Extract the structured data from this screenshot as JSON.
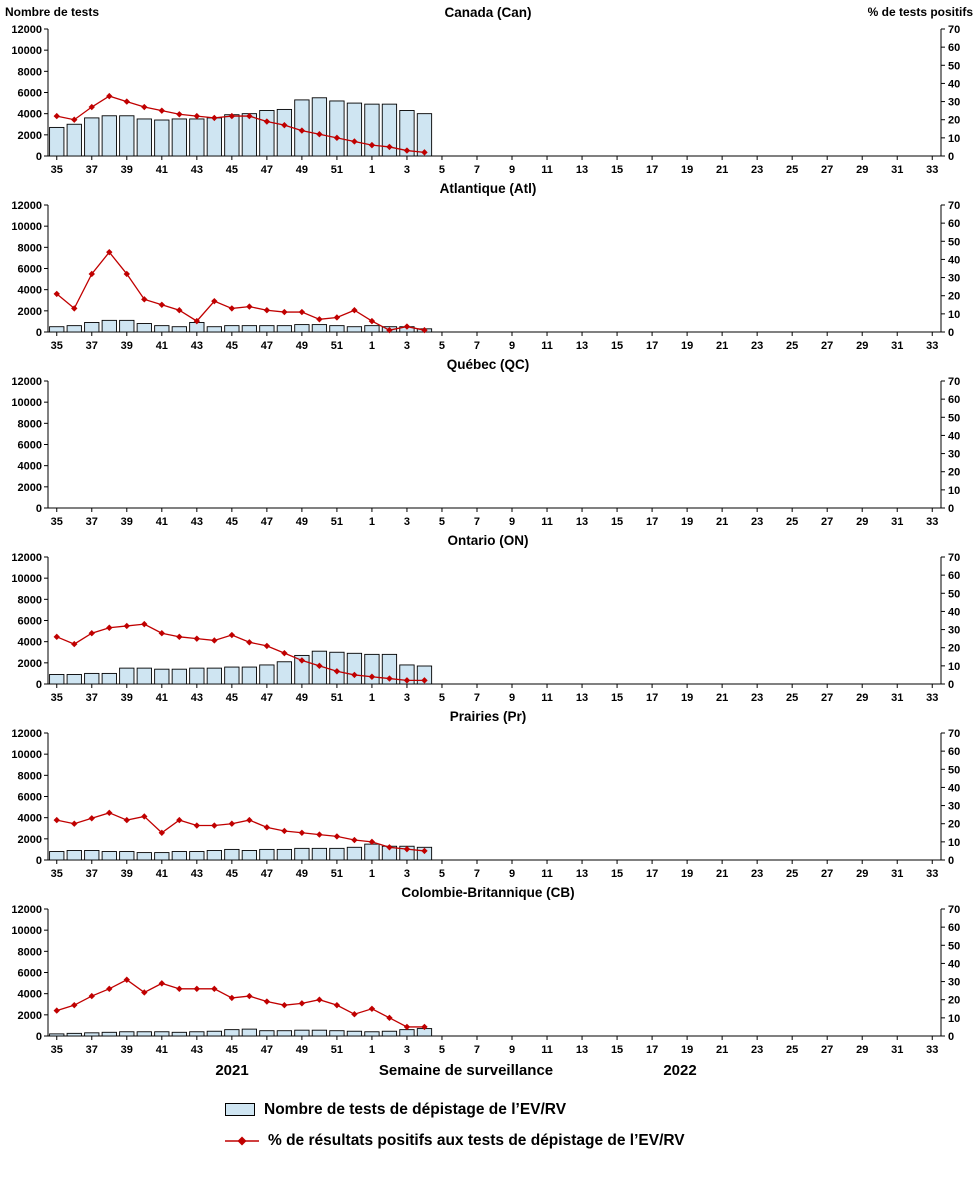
{
  "labels": {
    "left_axis": "Nombre de tests",
    "right_axis": "% de tests positifs"
  },
  "footer": {
    "year_left": "2021",
    "x_label": "Semaine de surveillance",
    "year_right": "2022"
  },
  "legend": [
    {
      "series": "tests",
      "label": "Nombre de tests de dépistage de l’EV/RV"
    },
    {
      "series": "pct_positive",
      "label": "% de résultats positifs aux tests de dépistage de l’EV/RV"
    }
  ],
  "colors": {
    "bar_fill": "#cfe5f2",
    "bar_stroke": "#000000",
    "line": "#c00000"
  },
  "axes": {
    "yticks_left": [
      0,
      2000,
      4000,
      6000,
      8000,
      10000,
      12000
    ],
    "yticks_right": [
      0,
      10,
      20,
      30,
      40,
      50,
      60,
      70
    ],
    "x_weeks_2021": [
      35,
      36,
      37,
      38,
      39,
      40,
      41,
      42,
      43,
      44,
      45,
      46,
      47,
      48,
      49,
      50,
      51,
      52
    ],
    "x_weeks_2022": [
      1,
      2,
      3,
      4,
      5,
      6,
      7,
      8,
      9,
      10,
      11,
      12,
      13,
      14,
      15,
      16,
      17,
      18,
      19,
      20,
      21,
      22,
      23,
      24,
      25,
      26,
      27,
      28,
      29,
      30,
      31,
      32,
      33
    ],
    "x_tick_labels": [
      "35",
      "37",
      "39",
      "41",
      "43",
      "45",
      "47",
      "49",
      "51",
      "1",
      "3",
      "5",
      "7",
      "9",
      "11",
      "13",
      "15",
      "17",
      "19",
      "21",
      "23",
      "25",
      "27",
      "29",
      "31",
      "33"
    ]
  },
  "chart_data": [
    {
      "type": "bar+line",
      "title": "Canada (Can)",
      "ylim_left": [
        0,
        12000
      ],
      "ylim_right": [
        0,
        70
      ],
      "weeks": [
        35,
        36,
        37,
        38,
        39,
        40,
        41,
        42,
        43,
        44,
        45,
        46,
        47,
        48,
        49,
        50,
        51,
        52,
        1,
        2,
        3,
        4
      ],
      "tests": [
        2700,
        3000,
        3600,
        3800,
        3800,
        3500,
        3400,
        3500,
        3500,
        3600,
        3900,
        4000,
        4300,
        4400,
        5300,
        5500,
        5200,
        5000,
        4900,
        4900,
        4300,
        4000
      ],
      "pct_positive": [
        22,
        20,
        27,
        33,
        30,
        27,
        25,
        23,
        22,
        21,
        22,
        22,
        19,
        17,
        14,
        12,
        10,
        8,
        6,
        5,
        3,
        2
      ]
    },
    {
      "type": "bar+line",
      "title": "Atlantique (Atl)",
      "ylim_left": [
        0,
        12000
      ],
      "ylim_right": [
        0,
        70
      ],
      "weeks": [
        35,
        36,
        37,
        38,
        39,
        40,
        41,
        42,
        43,
        44,
        45,
        46,
        47,
        48,
        49,
        50,
        51,
        52,
        1,
        2,
        3,
        4
      ],
      "tests": [
        500,
        600,
        900,
        1100,
        1100,
        800,
        600,
        500,
        900,
        500,
        600,
        600,
        600,
        600,
        700,
        700,
        600,
        500,
        600,
        500,
        500,
        300
      ],
      "pct_positive": [
        21,
        13,
        32,
        44,
        32,
        18,
        15,
        12,
        6,
        17,
        13,
        14,
        12,
        11,
        11,
        7,
        8,
        12,
        6,
        1,
        3,
        1
      ]
    },
    {
      "type": "bar+line",
      "title": "Québec (QC)",
      "ylim_left": [
        0,
        12000
      ],
      "ylim_right": [
        0,
        70
      ],
      "weeks": [],
      "tests": [],
      "pct_positive": []
    },
    {
      "type": "bar+line",
      "title": "Ontario (ON)",
      "ylim_left": [
        0,
        12000
      ],
      "ylim_right": [
        0,
        70
      ],
      "weeks": [
        35,
        36,
        37,
        38,
        39,
        40,
        41,
        42,
        43,
        44,
        45,
        46,
        47,
        48,
        49,
        50,
        51,
        52,
        1,
        2,
        3,
        4
      ],
      "tests": [
        900,
        900,
        1000,
        1000,
        1500,
        1500,
        1400,
        1400,
        1500,
        1500,
        1600,
        1600,
        1800,
        2100,
        2700,
        3100,
        3000,
        2900,
        2800,
        2800,
        1800,
        1700
      ],
      "pct_positive": [
        26,
        22,
        28,
        31,
        32,
        33,
        28,
        26,
        25,
        24,
        27,
        23,
        21,
        17,
        13,
        10,
        7,
        5,
        4,
        3,
        2,
        2
      ]
    },
    {
      "type": "bar+line",
      "title": "Prairies (Pr)",
      "ylim_left": [
        0,
        12000
      ],
      "ylim_right": [
        0,
        70
      ],
      "weeks": [
        35,
        36,
        37,
        38,
        39,
        40,
        41,
        42,
        43,
        44,
        45,
        46,
        47,
        48,
        49,
        50,
        51,
        52,
        1,
        2,
        3,
        4
      ],
      "tests": [
        800,
        900,
        900,
        800,
        800,
        700,
        700,
        800,
        800,
        900,
        1000,
        900,
        1000,
        1000,
        1100,
        1100,
        1100,
        1200,
        1500,
        1300,
        1300,
        1200
      ],
      "pct_positive": [
        22,
        20,
        23,
        26,
        22,
        24,
        15,
        22,
        19,
        19,
        20,
        22,
        18,
        16,
        15,
        14,
        13,
        11,
        10,
        7,
        6,
        5
      ]
    },
    {
      "type": "bar+line",
      "title": "Colombie-Britannique (CB)",
      "ylim_left": [
        0,
        12000
      ],
      "ylim_right": [
        0,
        70
      ],
      "weeks": [
        35,
        36,
        37,
        38,
        39,
        40,
        41,
        42,
        43,
        44,
        45,
        46,
        47,
        48,
        49,
        50,
        51,
        52,
        1,
        2,
        3,
        4
      ],
      "tests": [
        200,
        250,
        300,
        350,
        400,
        400,
        400,
        350,
        400,
        450,
        600,
        650,
        500,
        500,
        550,
        550,
        500,
        450,
        400,
        450,
        600,
        700
      ],
      "pct_positive": [
        14,
        17,
        22,
        26,
        31,
        24,
        29,
        26,
        26,
        26,
        21,
        22,
        19,
        17,
        18,
        20,
        17,
        12,
        15,
        10,
        5,
        5
      ]
    }
  ]
}
